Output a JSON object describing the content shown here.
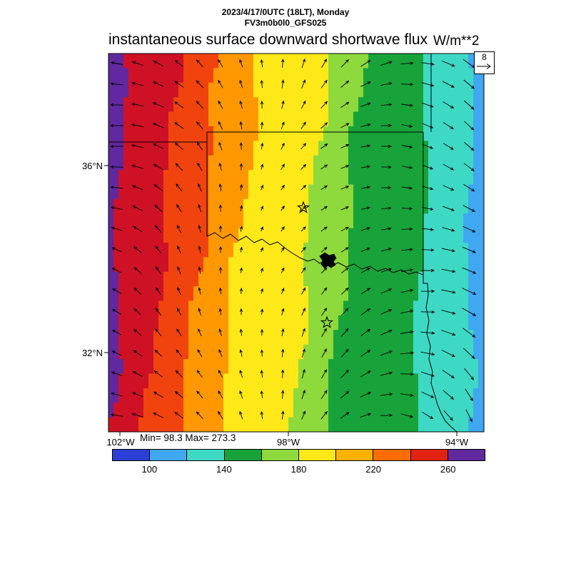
{
  "header": {
    "line1": "2023/4/17/0UTC (18LT), Monday",
    "line2": "FV3m0b0l0_GFS025"
  },
  "title": "instantaneous surface downward shortwave flux",
  "units": "W/m**2",
  "stats": {
    "min_max": "Min= 98.3 Max= 273.3"
  },
  "axes": {
    "lat_labels": [
      "36°N",
      "32°N"
    ],
    "lon_labels": [
      "102°W",
      "98°W",
      "94°W"
    ]
  },
  "wind_ref": {
    "label": "8"
  },
  "chart_data": {
    "type": "heatmap",
    "subtype": "filled-contour-map-with-wind-vectors",
    "title": "instantaneous surface downward shortwave flux",
    "units": "W/m**2",
    "valid_time": "2023/4/17/0UTC (18LT), Monday",
    "model_run": "FV3m0b0l0_GFS025",
    "min": 98.3,
    "max": 273.3,
    "wind_reference_vector": 8,
    "lat_ticks": [
      "36°N",
      "32°N"
    ],
    "lon_ticks": [
      "102°W",
      "98°W",
      "94°W"
    ],
    "colorbar_boundaries": [
      100,
      140,
      180,
      220,
      260
    ],
    "colorbar_segments": [
      {
        "range": "<100",
        "color": "#2a3fd4"
      },
      {
        "range": "100-120",
        "color": "#3fa8f0"
      },
      {
        "range": "120-140",
        "color": "#3ed9c4"
      },
      {
        "range": "140-160",
        "color": "#17a33a"
      },
      {
        "range": "160-180",
        "color": "#8ed93c"
      },
      {
        "range": "180-200",
        "color": "#ffe818"
      },
      {
        "range": "200-220",
        "color": "#ffb000"
      },
      {
        "range": "220-240",
        "color": "#ff6d00"
      },
      {
        "range": "240-260",
        "color": "#e02310"
      },
      {
        "range": ">260",
        "color": "#6128a0"
      }
    ],
    "bands_west_to_east": [
      {
        "range": ">260",
        "color": "#6128a0"
      },
      {
        "range": "240-260",
        "color": "#cf1126"
      },
      {
        "range": "220-240",
        "color": "#f0430e"
      },
      {
        "range": "200-220",
        "color": "#ff9800"
      },
      {
        "range": "180-200",
        "color": "#ffe818"
      },
      {
        "range": "160-180",
        "color": "#8ed93c"
      },
      {
        "range": "140-160",
        "color": "#17a33a"
      },
      {
        "range": "120-140",
        "color": "#3ed9c4"
      },
      {
        "range": "100-120",
        "color": "#3fa8f0"
      }
    ],
    "location_markers": {
      "symbol": "open-star",
      "count": 2
    }
  }
}
